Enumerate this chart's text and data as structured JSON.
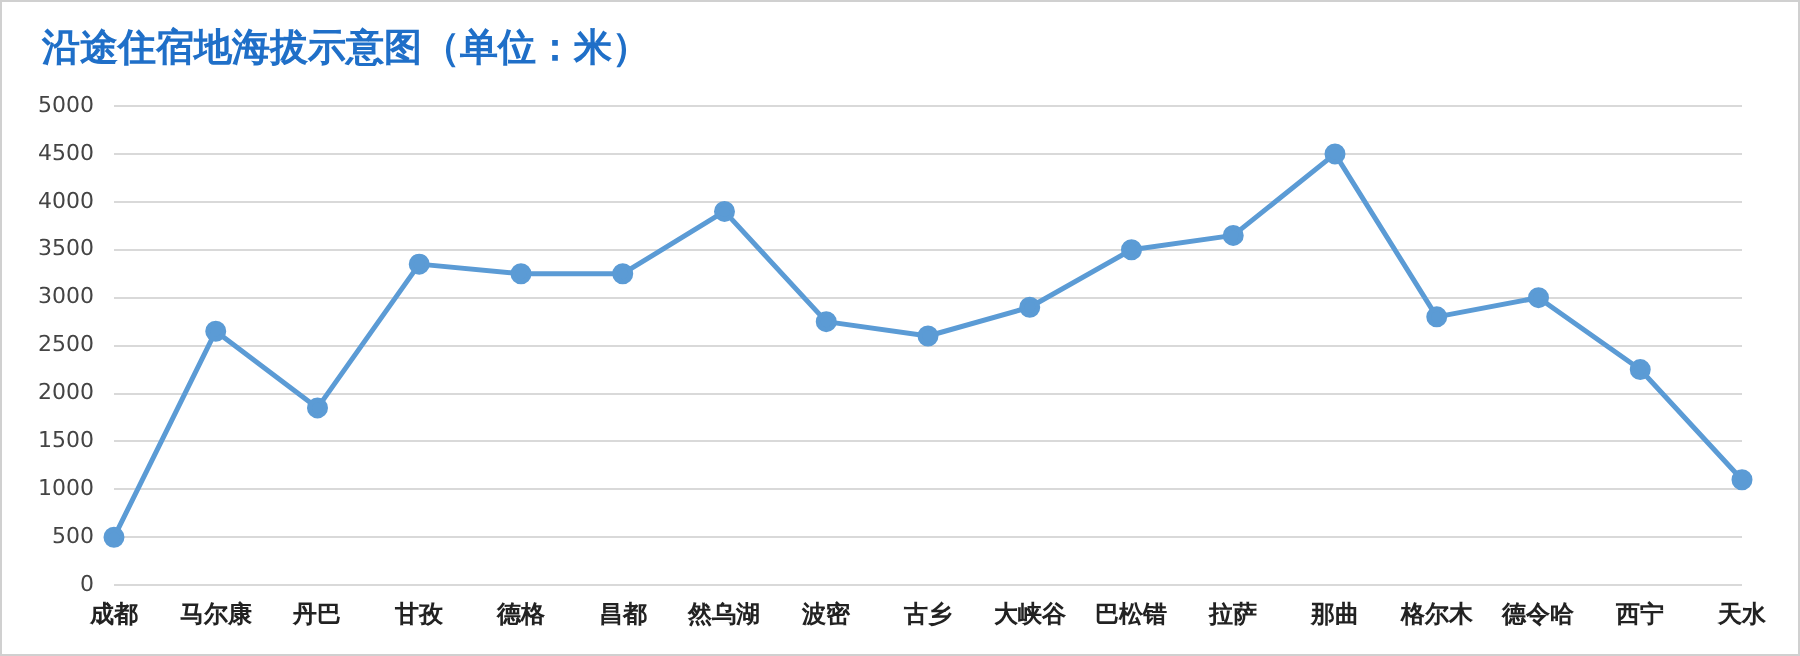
{
  "chart_data": {
    "type": "line",
    "title": "沿途住宿地海拔示意图（单位：米）",
    "categories": [
      "成都",
      "马尔康",
      "丹巴",
      "甘孜",
      "德格",
      "昌都",
      "然乌湖",
      "波密",
      "古乡",
      "大峡谷",
      "巴松错",
      "拉萨",
      "那曲",
      "格尔木",
      "德令哈",
      "西宁",
      "天水"
    ],
    "series": [
      {
        "color": "#5b9bd5",
        "values": [
          500,
          2650,
          1850,
          3350,
          3250,
          3250,
          3900,
          2750,
          2600,
          2900,
          3500,
          3650,
          4500,
          2800,
          3000,
          2250,
          1100
        ]
      }
    ],
    "ylim": [
      0,
      5000
    ],
    "yticks": [
      0,
      500,
      1000,
      1500,
      2000,
      2500,
      3000,
      3500,
      4000,
      4500,
      5000
    ],
    "grid": "y",
    "legend": false,
    "marker": "circle",
    "line_style": "solid"
  }
}
